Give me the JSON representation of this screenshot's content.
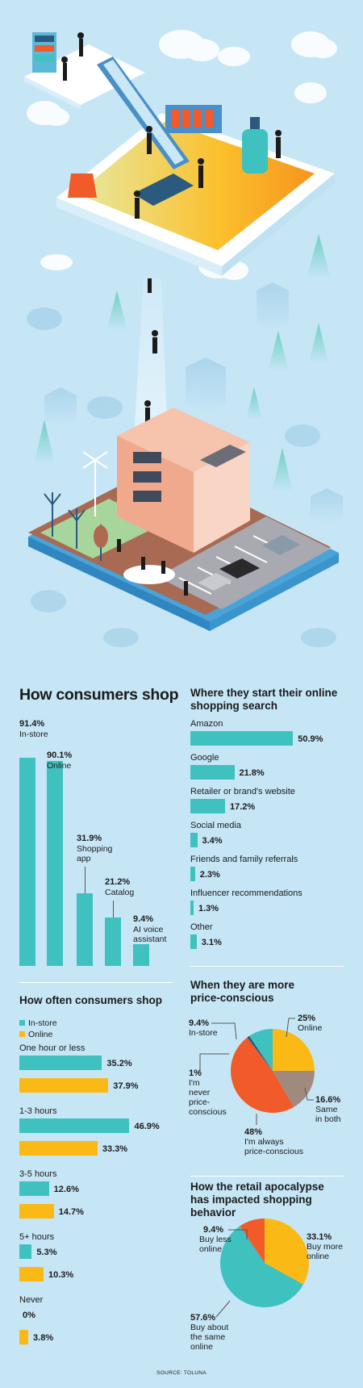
{
  "source": "SOURCE: TOLUNA",
  "colors": {
    "teal": "#3fc1c0",
    "gold": "#fbb915",
    "orange": "#f15a29",
    "taupe": "#a08a7e",
    "navy": "#2a5a7d",
    "background": "#c6e6f6"
  },
  "hero": {
    "icon": "isometric-retail-illustration"
  },
  "chart_data": [
    {
      "id": "consumers_shop",
      "type": "bar",
      "title": "How consumers shop",
      "categories": [
        "In-store",
        "Online",
        "Shopping app",
        "Catalog",
        "AI voice assistant"
      ],
      "labels": [
        [
          "In-store"
        ],
        [
          "Online"
        ],
        [
          "Shopping",
          "app"
        ],
        [
          "Catalog"
        ],
        [
          "AI voice",
          "assistant"
        ]
      ],
      "values": [
        91.4,
        90.1,
        31.9,
        21.2,
        9.4
      ],
      "value_labels": [
        "91.4%",
        "90.1%",
        "31.9%",
        "21.2%",
        "9.4%"
      ],
      "ylim": [
        0,
        100
      ]
    },
    {
      "id": "start_search",
      "type": "bar",
      "orientation": "horizontal",
      "title": "Where they start their online shopping search",
      "categories": [
        "Amazon",
        "Google",
        "Retailer or brand's website",
        "Social media",
        "Friends and family referrals",
        "Influencer recommendations",
        "Other"
      ],
      "values": [
        50.9,
        21.8,
        17.2,
        3.4,
        2.3,
        1.3,
        3.1
      ],
      "value_labels": [
        "50.9%",
        "21.8%",
        "17.2%",
        "3.4%",
        "2.3%",
        "1.3%",
        "3.1%"
      ],
      "xlim": [
        0,
        55
      ]
    },
    {
      "id": "how_often",
      "type": "bar",
      "orientation": "horizontal",
      "title": "How often consumers shop",
      "legend": [
        "In-store",
        "Online"
      ],
      "categories": [
        "One hour or less",
        "1-3 hours",
        "3-5 hours",
        "5+ hours",
        "Never"
      ],
      "series": [
        {
          "name": "In-store",
          "values": [
            35.2,
            46.9,
            12.6,
            5.3,
            0
          ],
          "value_labels": [
            "35.2%",
            "46.9%",
            "12.6%",
            "5.3%",
            "0%"
          ]
        },
        {
          "name": "Online",
          "values": [
            37.9,
            33.3,
            14.7,
            10.3,
            3.8
          ],
          "value_labels": [
            "37.9%",
            "33.3%",
            "14.7%",
            "10.3%",
            "3.8%"
          ]
        }
      ],
      "xlim": [
        0,
        50
      ]
    },
    {
      "id": "price_conscious",
      "type": "pie",
      "title": "When they are more price-conscious",
      "slices": [
        {
          "name": "Online",
          "value": 25,
          "label": "25%",
          "text": [
            "Online"
          ]
        },
        {
          "name": "Same in both",
          "value": 16.6,
          "label": "16.6%",
          "text": [
            "Same",
            "in both"
          ]
        },
        {
          "name": "I'm always price-conscious",
          "value": 48,
          "label": "48%",
          "text": [
            "I'm always",
            "price-conscious"
          ]
        },
        {
          "name": "I'm never price-conscious",
          "value": 1,
          "label": "1%",
          "text": [
            "I'm",
            "never",
            "price-",
            "conscious"
          ]
        },
        {
          "name": "In-store",
          "value": 9.4,
          "label": "9.4%",
          "text": [
            "In-store"
          ]
        }
      ]
    },
    {
      "id": "retail_apocalypse",
      "type": "pie",
      "title": "How the retail apocalypse has impacted shopping behavior",
      "slices": [
        {
          "name": "Buy more online",
          "value": 33.1,
          "label": "33.1%",
          "text": [
            "Buy more",
            "online"
          ]
        },
        {
          "name": "Buy about the same online",
          "value": 57.6,
          "label": "57.6%",
          "text": [
            "Buy about",
            "the same",
            "online"
          ]
        },
        {
          "name": "Buy less online",
          "value": 9.4,
          "label": "9.4%",
          "text": [
            "Buy less",
            "online"
          ]
        }
      ]
    }
  ]
}
